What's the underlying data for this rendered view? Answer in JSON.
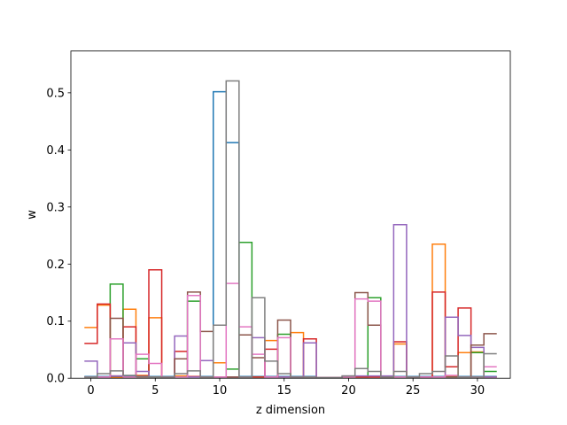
{
  "chart_data": {
    "type": "step",
    "title": "",
    "xlabel": "z dimension",
    "ylabel": "w",
    "xlim": [
      -1.55,
      32.55
    ],
    "ylim": [
      0,
      0.5733
    ],
    "x_ticks": [
      0,
      5,
      10,
      15,
      20,
      25,
      30
    ],
    "y_ticks": [
      0.0,
      0.1,
      0.2,
      0.3,
      0.4,
      0.5
    ],
    "x_tick_labels": [
      "0",
      "5",
      "10",
      "15",
      "20",
      "25",
      "30"
    ],
    "y_tick_labels": [
      "0.0",
      "0.1",
      "0.2",
      "0.3",
      "0.4",
      "0.5"
    ],
    "grid": false,
    "legend": "none",
    "x": [
      0,
      1,
      2,
      3,
      4,
      5,
      6,
      7,
      8,
      9,
      10,
      11,
      12,
      13,
      14,
      15,
      16,
      17,
      18,
      19,
      20,
      21,
      22,
      23,
      24,
      25,
      26,
      27,
      28,
      29,
      30,
      31
    ],
    "series": [
      {
        "color": "#1f77b4",
        "values": [
          0.003,
          0.003,
          0.003,
          0.003,
          0.003,
          0.003,
          0.003,
          0.003,
          0.003,
          0.003,
          0.502,
          0.413,
          0.003,
          0.003,
          0.003,
          0.003,
          0.003,
          0.003,
          0.001,
          0.001,
          0.003,
          0.003,
          0.003,
          0.003,
          0.003,
          0.003,
          0.003,
          0.003,
          0.003,
          0.003,
          0.003,
          0.003
        ]
      },
      {
        "color": "#ff7f0e",
        "values": [
          0.089,
          0.128,
          0.001,
          0.121,
          0.005,
          0.106,
          0.002,
          0.004,
          0.003,
          0.002,
          0.027,
          0.002,
          0.002,
          0.002,
          0.066,
          0.002,
          0.08,
          0.002,
          0.001,
          0.001,
          0.002,
          0.002,
          0.002,
          0.002,
          0.06,
          0.002,
          0.002,
          0.235,
          0.004,
          0.045,
          0.046,
          0.002
        ]
      },
      {
        "color": "#2ca02c",
        "values": [
          0.002,
          0.002,
          0.165,
          0.002,
          0.034,
          0.002,
          0.002,
          0.002,
          0.135,
          0.002,
          0.002,
          0.016,
          0.238,
          0.002,
          0.002,
          0.077,
          0.002,
          0.002,
          0.001,
          0.001,
          0.002,
          0.002,
          0.141,
          0.002,
          0.002,
          0.002,
          0.002,
          0.002,
          0.002,
          0.002,
          0.045,
          0.012
        ]
      },
      {
        "color": "#d62728",
        "values": [
          0.061,
          0.13,
          0.004,
          0.09,
          0.004,
          0.19,
          0.002,
          0.047,
          0.003,
          0.002,
          0.002,
          0.002,
          0.002,
          0.002,
          0.051,
          0.002,
          0.002,
          0.069,
          0.001,
          0.001,
          0.002,
          0.002,
          0.002,
          0.002,
          0.064,
          0.002,
          0.002,
          0.151,
          0.02,
          0.123,
          0.002,
          0.002
        ]
      },
      {
        "color": "#9467bd",
        "values": [
          0.03,
          0.002,
          0.004,
          0.062,
          0.012,
          0.002,
          0.002,
          0.074,
          0.002,
          0.031,
          0.002,
          0.002,
          0.002,
          0.071,
          0.002,
          0.002,
          0.002,
          0.062,
          0.001,
          0.001,
          0.004,
          0.004,
          0.004,
          0.004,
          0.269,
          0.002,
          0.002,
          0.002,
          0.107,
          0.075,
          0.054,
          0.002
        ]
      },
      {
        "color": "#8c564b",
        "values": [
          0.002,
          0.002,
          0.105,
          0.002,
          0.002,
          0.002,
          0.002,
          0.034,
          0.151,
          0.082,
          0.002,
          0.002,
          0.076,
          0.036,
          0.002,
          0.102,
          0.002,
          0.002,
          0.001,
          0.001,
          0.002,
          0.15,
          0.093,
          0.002,
          0.002,
          0.002,
          0.002,
          0.002,
          0.002,
          0.002,
          0.058,
          0.078
        ]
      },
      {
        "color": "#e377c2",
        "values": [
          0.002,
          0.002,
          0.069,
          0.002,
          0.042,
          0.026,
          0.002,
          0.002,
          0.145,
          0.002,
          0.002,
          0.166,
          0.09,
          0.042,
          0.002,
          0.071,
          0.002,
          0.002,
          0.001,
          0.001,
          0.002,
          0.139,
          0.135,
          0.002,
          0.002,
          0.002,
          0.002,
          0.002,
          0.005,
          0.002,
          0.002,
          0.02
        ]
      },
      {
        "color": "#7f7f7f",
        "values": [
          0.002,
          0.008,
          0.013,
          0.005,
          0.003,
          0.002,
          0.002,
          0.008,
          0.013,
          0.002,
          0.093,
          0.521,
          0.002,
          0.141,
          0.03,
          0.008,
          0.002,
          0.002,
          0.001,
          0.001,
          0.004,
          0.017,
          0.012,
          0.002,
          0.012,
          0.002,
          0.008,
          0.012,
          0.039,
          0.002,
          0.002,
          0.043
        ]
      }
    ]
  }
}
